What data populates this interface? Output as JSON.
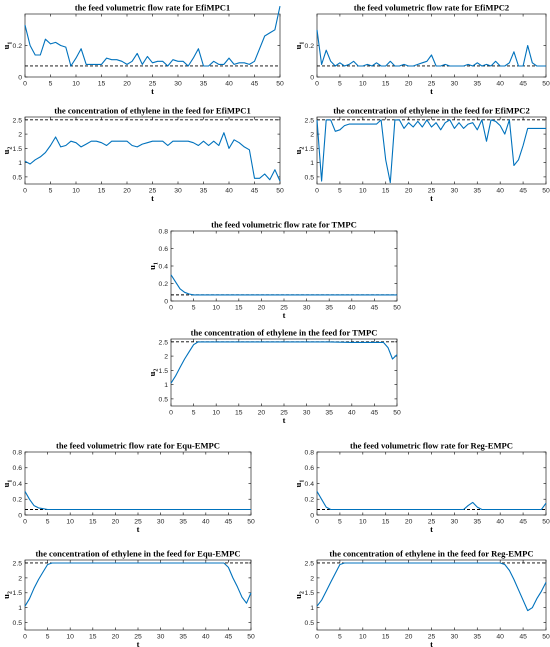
{
  "colors": {
    "series": "#0072BD",
    "reference": "#000000"
  },
  "chart_data": [
    {
      "type": "line",
      "title": "the feed volumetric flow rate for EfiMPC1",
      "xlabel": "t",
      "ylabel": "u",
      "ylabel_sub": "1",
      "xlim": [
        0,
        50
      ],
      "ylim": [
        0,
        0.4
      ],
      "xticks": [
        0,
        5,
        10,
        15,
        20,
        25,
        30,
        35,
        40,
        45,
        50
      ],
      "yticks": [
        0,
        0.2
      ],
      "reference": 0.07,
      "series": [
        {
          "x": [
            0,
            1,
            2,
            3,
            4,
            5,
            6,
            7,
            8,
            9,
            10,
            11,
            12,
            13,
            14,
            15,
            16,
            17,
            18,
            19,
            20,
            21,
            22,
            23,
            24,
            25,
            26,
            27,
            28,
            29,
            30,
            31,
            32,
            33,
            34,
            35,
            36,
            37,
            38,
            39,
            40,
            41,
            42,
            43,
            44,
            45,
            46,
            47,
            48,
            49,
            50
          ],
          "y": [
            0.33,
            0.2,
            0.14,
            0.14,
            0.24,
            0.21,
            0.22,
            0.2,
            0.19,
            0.07,
            0.12,
            0.18,
            0.08,
            0.08,
            0.08,
            0.08,
            0.12,
            0.11,
            0.11,
            0.1,
            0.08,
            0.1,
            0.15,
            0.08,
            0.13,
            0.09,
            0.1,
            0.1,
            0.07,
            0.11,
            0.1,
            0.1,
            0.07,
            0.12,
            0.18,
            0.07,
            0.07,
            0.1,
            0.08,
            0.08,
            0.12,
            0.08,
            0.09,
            0.09,
            0.08,
            0.1,
            0.18,
            0.26,
            0.28,
            0.3,
            0.45
          ]
        }
      ]
    },
    {
      "type": "line",
      "title": "the feed volumetric flow rate for EfiMPC2",
      "xlabel": "t",
      "ylabel": "u",
      "ylabel_sub": "1",
      "xlim": [
        0,
        50
      ],
      "ylim": [
        0,
        0.4
      ],
      "xticks": [
        0,
        5,
        10,
        15,
        20,
        25,
        30,
        35,
        40,
        45,
        50
      ],
      "yticks": [
        0,
        0.2
      ],
      "reference": 0.07,
      "series": [
        {
          "x": [
            0,
            1,
            2,
            3,
            4,
            5,
            6,
            7,
            8,
            9,
            10,
            11,
            12,
            13,
            14,
            15,
            16,
            17,
            18,
            19,
            20,
            21,
            22,
            23,
            24,
            25,
            26,
            27,
            28,
            29,
            30,
            31,
            32,
            33,
            34,
            35,
            36,
            37,
            38,
            39,
            40,
            41,
            42,
            43,
            44,
            45,
            46,
            47,
            48,
            49,
            50
          ],
          "y": [
            0.3,
            0.08,
            0.17,
            0.1,
            0.07,
            0.09,
            0.07,
            0.08,
            0.1,
            0.07,
            0.07,
            0.08,
            0.07,
            0.09,
            0.07,
            0.07,
            0.1,
            0.07,
            0.07,
            0.08,
            0.07,
            0.07,
            0.08,
            0.09,
            0.1,
            0.14,
            0.07,
            0.07,
            0.08,
            0.07,
            0.07,
            0.07,
            0.07,
            0.08,
            0.07,
            0.09,
            0.07,
            0.08,
            0.07,
            0.1,
            0.07,
            0.07,
            0.09,
            0.16,
            0.07,
            0.07,
            0.2,
            0.09,
            0.07,
            0.07,
            0.07
          ]
        }
      ]
    },
    {
      "type": "line",
      "title": "the concentration of ethylene in the feed for EfiMPC1",
      "xlabel": "t",
      "ylabel": "u",
      "ylabel_sub": "2",
      "xlim": [
        0,
        50
      ],
      "ylim": [
        0.25,
        2.6
      ],
      "xticks": [
        0,
        5,
        10,
        15,
        20,
        25,
        30,
        35,
        40,
        45,
        50
      ],
      "yticks": [
        0.5,
        1,
        1.5,
        2,
        2.5
      ],
      "reference": 2.5,
      "series": [
        {
          "x": [
            0,
            1,
            2,
            3,
            4,
            5,
            6,
            7,
            8,
            9,
            10,
            11,
            12,
            13,
            14,
            15,
            16,
            17,
            18,
            19,
            20,
            21,
            22,
            23,
            24,
            25,
            26,
            27,
            28,
            29,
            30,
            31,
            32,
            33,
            34,
            35,
            36,
            37,
            38,
            39,
            40,
            41,
            42,
            43,
            44,
            45,
            46,
            47,
            48,
            49,
            50
          ],
          "y": [
            1.05,
            0.95,
            1.1,
            1.2,
            1.35,
            1.6,
            1.9,
            1.55,
            1.6,
            1.75,
            1.7,
            1.55,
            1.65,
            1.75,
            1.75,
            1.7,
            1.6,
            1.75,
            1.75,
            1.75,
            1.75,
            1.6,
            1.55,
            1.65,
            1.7,
            1.75,
            1.75,
            1.75,
            1.6,
            1.75,
            1.75,
            1.75,
            1.75,
            1.7,
            1.6,
            1.75,
            1.6,
            1.75,
            1.6,
            2.05,
            1.5,
            1.8,
            1.7,
            1.55,
            1.45,
            0.45,
            0.45,
            0.6,
            0.4,
            0.75,
            0.35
          ]
        }
      ]
    },
    {
      "type": "line",
      "title": "the concentration of ethylene in the feed for EfiMPC2",
      "xlabel": "t",
      "ylabel": "u",
      "ylabel_sub": "2",
      "xlim": [
        0,
        50
      ],
      "ylim": [
        0.25,
        2.6
      ],
      "xticks": [
        0,
        5,
        10,
        15,
        20,
        25,
        30,
        35,
        40,
        45,
        50
      ],
      "yticks": [
        0.5,
        1,
        1.5,
        2,
        2.5
      ],
      "reference": 2.5,
      "series": [
        {
          "x": [
            0,
            1,
            2,
            3,
            4,
            5,
            6,
            7,
            8,
            9,
            10,
            11,
            12,
            13,
            14,
            15,
            16,
            17,
            18,
            19,
            20,
            21,
            22,
            23,
            24,
            25,
            26,
            27,
            28,
            29,
            30,
            31,
            32,
            33,
            34,
            35,
            36,
            37,
            38,
            39,
            40,
            41,
            42,
            43,
            44,
            45,
            46,
            47,
            48,
            49,
            50
          ],
          "y": [
            2.5,
            0.35,
            2.5,
            2.5,
            2.1,
            2.15,
            2.3,
            2.35,
            2.35,
            2.35,
            2.35,
            2.35,
            2.35,
            2.35,
            2.5,
            1.1,
            0.3,
            2.5,
            2.5,
            2.2,
            2.4,
            2.25,
            2.45,
            2.25,
            2.5,
            2.25,
            2.4,
            2.15,
            2.4,
            2.5,
            2.2,
            2.4,
            2.2,
            2.35,
            2.4,
            2.15,
            2.5,
            1.75,
            2.5,
            2.45,
            2.3,
            2.0,
            2.5,
            0.9,
            1.1,
            1.6,
            2.2,
            2.2,
            2.2,
            2.2,
            2.2
          ]
        }
      ]
    },
    {
      "type": "line",
      "title": "the feed volumetric flow rate for TMPC",
      "xlabel": "t",
      "ylabel": "u",
      "ylabel_sub": "1",
      "xlim": [
        0,
        50
      ],
      "ylim": [
        0,
        0.8
      ],
      "xticks": [
        0,
        5,
        10,
        15,
        20,
        25,
        30,
        35,
        40,
        45,
        50
      ],
      "yticks": [
        0,
        0.2,
        0.4,
        0.6,
        0.8
      ],
      "reference": 0.07,
      "series": [
        {
          "x": [
            0,
            1,
            2,
            3,
            4,
            5,
            50
          ],
          "y": [
            0.3,
            0.22,
            0.14,
            0.1,
            0.08,
            0.07,
            0.07
          ]
        }
      ]
    },
    {
      "type": "line",
      "title": "the concentration of ethylene in the feed for TMPC",
      "xlabel": "t",
      "ylabel": "u",
      "ylabel_sub": "2",
      "xlim": [
        0,
        50
      ],
      "ylim": [
        0.25,
        2.6
      ],
      "xticks": [
        0,
        5,
        10,
        15,
        20,
        25,
        30,
        35,
        40,
        45,
        50
      ],
      "yticks": [
        0.5,
        1,
        1.5,
        2,
        2.5
      ],
      "reference": 2.5,
      "series": [
        {
          "x": [
            0,
            1,
            2,
            3,
            4,
            5,
            6,
            35,
            40,
            47,
            48,
            49,
            50
          ],
          "y": [
            1.05,
            1.3,
            1.6,
            1.9,
            2.15,
            2.4,
            2.5,
            2.5,
            2.48,
            2.48,
            2.3,
            1.9,
            2.05
          ]
        }
      ]
    },
    {
      "type": "line",
      "title": "the feed volumetric flow rate for Equ-EMPC",
      "xlabel": "t",
      "ylabel": "u",
      "ylabel_sub": "1",
      "xlim": [
        0,
        50
      ],
      "ylim": [
        0,
        0.8
      ],
      "xticks": [
        0,
        5,
        10,
        15,
        20,
        25,
        30,
        35,
        40,
        45,
        50
      ],
      "yticks": [
        0,
        0.2,
        0.4,
        0.6,
        0.8
      ],
      "reference": 0.07,
      "series": [
        {
          "x": [
            0,
            1,
            2,
            3,
            4,
            5,
            50
          ],
          "y": [
            0.3,
            0.2,
            0.12,
            0.09,
            0.08,
            0.07,
            0.07
          ]
        }
      ]
    },
    {
      "type": "line",
      "title": "the feed volumetric flow rate for Reg-EMPC",
      "xlabel": "t",
      "ylabel": "u",
      "ylabel_sub": "1",
      "xlim": [
        0,
        50
      ],
      "ylim": [
        0,
        0.8
      ],
      "xticks": [
        0,
        5,
        10,
        15,
        20,
        25,
        30,
        35,
        40,
        45,
        50
      ],
      "yticks": [
        0,
        0.2,
        0.4,
        0.6,
        0.8
      ],
      "reference": 0.07,
      "series": [
        {
          "x": [
            0,
            1,
            2,
            3,
            4,
            5,
            32,
            33,
            34,
            35,
            36,
            49,
            50
          ],
          "y": [
            0.3,
            0.2,
            0.1,
            0.07,
            0.07,
            0.07,
            0.07,
            0.12,
            0.16,
            0.1,
            0.07,
            0.07,
            0.15
          ]
        }
      ]
    },
    {
      "type": "line",
      "title": "the concentration of ethylene in the feed for Equ-EMPC",
      "xlabel": "t",
      "ylabel": "u",
      "ylabel_sub": "2",
      "xlim": [
        0,
        50
      ],
      "ylim": [
        0.25,
        2.6
      ],
      "xticks": [
        0,
        5,
        10,
        15,
        20,
        25,
        30,
        35,
        40,
        45,
        50
      ],
      "yticks": [
        0.5,
        1,
        1.5,
        2,
        2.5
      ],
      "reference": 2.5,
      "series": [
        {
          "x": [
            0,
            1,
            2,
            3,
            4,
            5,
            6,
            44,
            45,
            46,
            47,
            48,
            49,
            50
          ],
          "y": [
            1.05,
            1.3,
            1.65,
            1.95,
            2.2,
            2.45,
            2.5,
            2.5,
            2.35,
            2.0,
            1.7,
            1.35,
            1.15,
            1.5
          ]
        }
      ]
    },
    {
      "type": "line",
      "title": "the concentration of ethylene in the feed for Reg-EMPC",
      "xlabel": "t",
      "ylabel": "u",
      "ylabel_sub": "2",
      "xlim": [
        0,
        50
      ],
      "ylim": [
        0.25,
        2.6
      ],
      "xticks": [
        0,
        5,
        10,
        15,
        20,
        25,
        30,
        35,
        40,
        45,
        50
      ],
      "yticks": [
        0.5,
        1,
        1.5,
        2,
        2.5
      ],
      "reference": 2.5,
      "series": [
        {
          "x": [
            0,
            1,
            2,
            3,
            4,
            5,
            6,
            40,
            41,
            42,
            43,
            44,
            45,
            46,
            47,
            48,
            49,
            50
          ],
          "y": [
            1.05,
            1.25,
            1.55,
            1.85,
            2.15,
            2.45,
            2.5,
            2.5,
            2.45,
            2.25,
            1.95,
            1.6,
            1.25,
            0.9,
            1.0,
            1.3,
            1.55,
            1.85
          ]
        }
      ]
    }
  ]
}
